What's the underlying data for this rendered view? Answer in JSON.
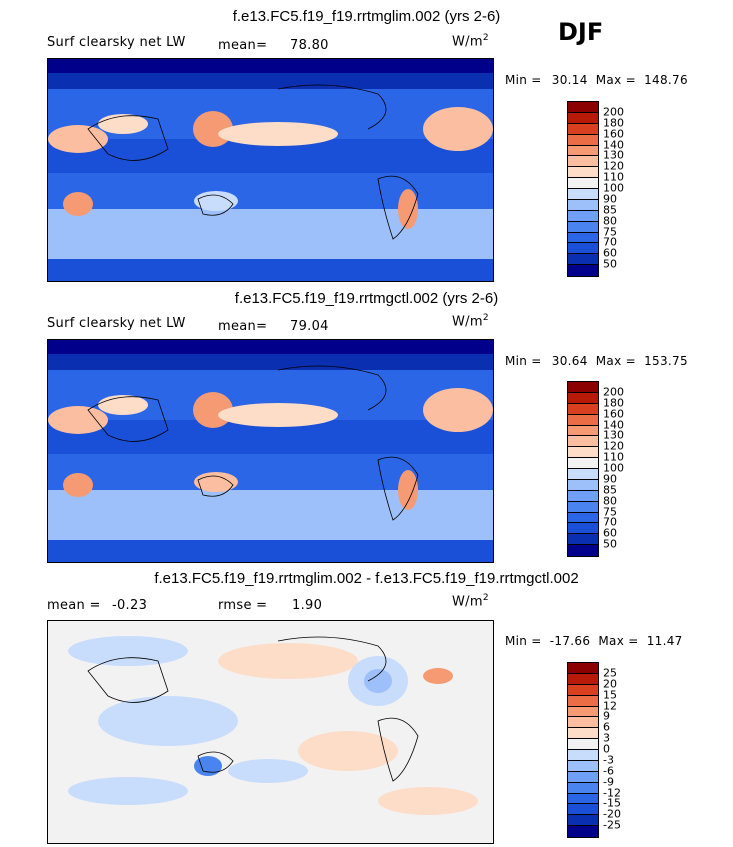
{
  "season": "DJF",
  "units_base": "W/m",
  "units_exp": "2",
  "chart_data": [
    {
      "type": "heatmap",
      "title": "f.e13.FC5.f19_f19.rrtmglim.002 (yrs 2-6)",
      "variable": "Surf clearsky net LW",
      "stat_label": "mean=",
      "stat_value": "78.80",
      "min_label": "Min =",
      "min_value": "30.14",
      "max_label": "Max =",
      "max_value": "148.76",
      "levels": [
        "50",
        "60",
        "70",
        "75",
        "80",
        "85",
        "90",
        "100",
        "110",
        "120",
        "130",
        "140",
        "160",
        "180",
        "200"
      ],
      "colors": [
        "#00008b",
        "#0a2fb0",
        "#1a50d8",
        "#2a66e6",
        "#4a84ef",
        "#6fa0f5",
        "#9ec0fa",
        "#c8dcfc",
        "#f2f2f2",
        "#fddcc8",
        "#fbbea0",
        "#f59a72",
        "#ea6d45",
        "#d8401f",
        "#b81a0a",
        "#8b0000"
      ]
    },
    {
      "type": "heatmap",
      "title": "f.e13.FC5.f19_f19.rrtmgctl.002 (yrs 2-6)",
      "variable": "Surf clearsky net LW",
      "stat_label": "mean=",
      "stat_value": "79.04",
      "min_label": "Min =",
      "min_value": "30.64",
      "max_label": "Max =",
      "max_value": "153.75",
      "levels": [
        "50",
        "60",
        "70",
        "75",
        "80",
        "85",
        "90",
        "100",
        "110",
        "120",
        "130",
        "140",
        "160",
        "180",
        "200"
      ],
      "colors": [
        "#00008b",
        "#0a2fb0",
        "#1a50d8",
        "#2a66e6",
        "#4a84ef",
        "#6fa0f5",
        "#9ec0fa",
        "#c8dcfc",
        "#f2f2f2",
        "#fddcc8",
        "#fbbea0",
        "#f59a72",
        "#ea6d45",
        "#d8401f",
        "#b81a0a",
        "#8b0000"
      ]
    },
    {
      "type": "heatmap",
      "title": "f.e13.FC5.f19_f19.rrtmglim.002 - f.e13.FC5.f19_f19.rrtmgctl.002",
      "stat_label": "mean =",
      "stat_value": "-0.23",
      "stat2_label": "rmse =",
      "stat2_value": "1.90",
      "min_label": "Min =",
      "min_value": "-17.66",
      "max_label": "Max =",
      "max_value": "11.47",
      "levels": [
        "-25",
        "-20",
        "-15",
        "-12",
        "-9",
        "-6",
        "-3",
        "0",
        "3",
        "6",
        "9",
        "12",
        "15",
        "20",
        "25"
      ],
      "colors": [
        "#00008b",
        "#0a2fb0",
        "#1a50d8",
        "#2a66e6",
        "#4a84ef",
        "#6fa0f5",
        "#9ec0fa",
        "#c8dcfc",
        "#f2f2f2",
        "#fddcc8",
        "#fbbea0",
        "#f59a72",
        "#ea6d45",
        "#d8401f",
        "#b81a0a",
        "#8b0000"
      ]
    }
  ]
}
